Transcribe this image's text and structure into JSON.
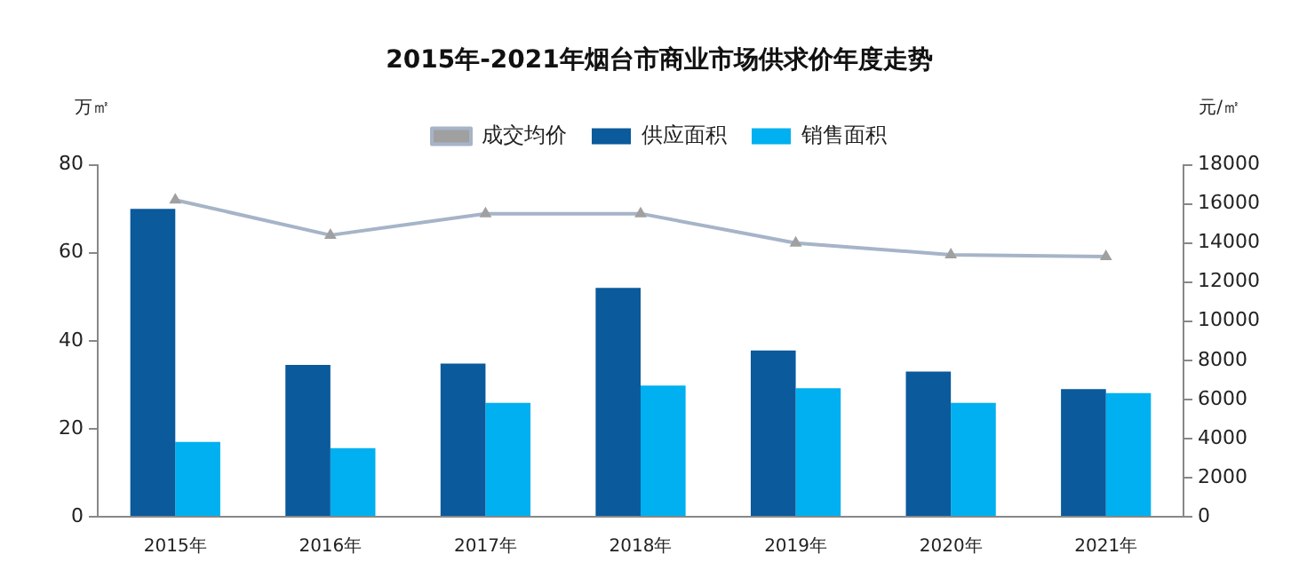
{
  "chart_data": {
    "type": "bar",
    "title": "2015年-2021年烟台市商业市场供求价年度走势",
    "ylabel": "万㎡",
    "y2label": "元/㎡",
    "categories": [
      "2015年",
      "2016年",
      "2017年",
      "2018年",
      "2019年",
      "2020年",
      "2021年"
    ],
    "series": [
      {
        "name": "供应面积",
        "color": "#0a5a9c",
        "values": [
          70,
          34.5,
          34.8,
          52,
          37.8,
          33,
          29
        ]
      },
      {
        "name": "销售面积",
        "color": "#00b0f0",
        "values": [
          17,
          15.6,
          25.9,
          29.8,
          29.2,
          25.9,
          28.1
        ]
      },
      {
        "name": "成交均价",
        "type": "line",
        "axis": "y2",
        "color": "#a6b4c8",
        "marker": "triangle",
        "values": [
          16200,
          14400,
          15500,
          15500,
          14000,
          13400,
          13300
        ]
      }
    ],
    "ylim": [
      0,
      80
    ],
    "yticks": [
      0,
      20,
      40,
      60,
      80
    ],
    "y2lim": [
      0,
      18000
    ],
    "y2ticks": [
      0,
      2000,
      4000,
      6000,
      8000,
      10000,
      12000,
      14000,
      16000,
      18000
    ],
    "grid": false,
    "legend": "top"
  }
}
